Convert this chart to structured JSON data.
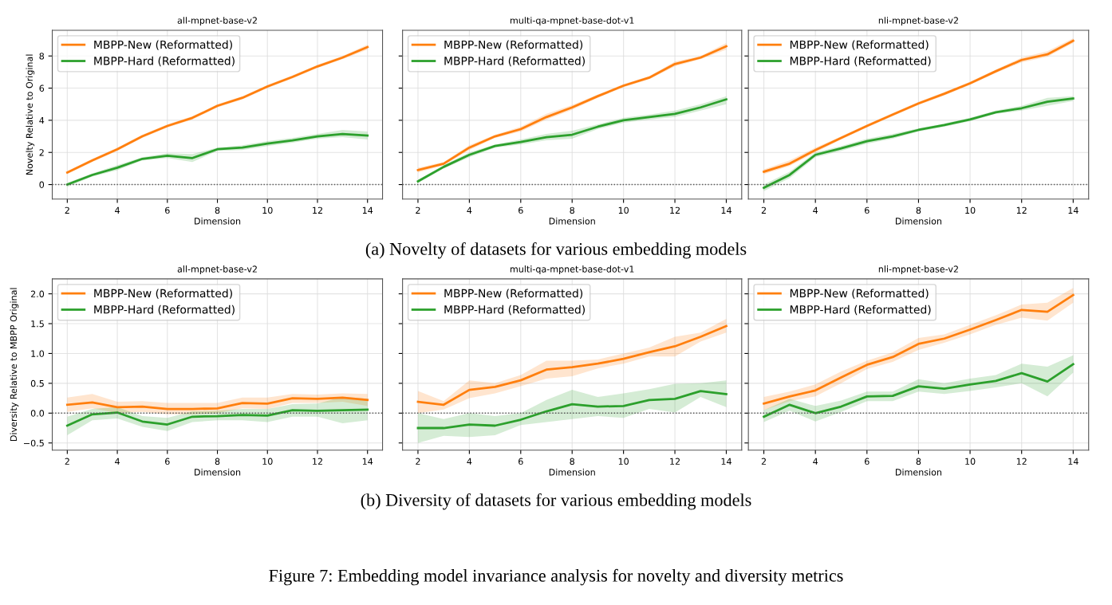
{
  "chart_data": [
    {
      "type": "line",
      "title": "all-mpnet-base-v2",
      "xlabel": "Dimension",
      "ylabel": "Novelty Relative to Original",
      "x": [
        2,
        3,
        4,
        5,
        6,
        7,
        8,
        9,
        10,
        11,
        12,
        13,
        14
      ],
      "xlim": [
        1.4,
        14.6
      ],
      "xticks": [
        2,
        4,
        6,
        8,
        10,
        12,
        14
      ],
      "ylim": [
        -0.9,
        9.6
      ],
      "yticks": [
        0,
        2,
        4,
        6,
        8
      ],
      "grid": true,
      "legend": "top left",
      "ref_lines": [
        {
          "axis": "y",
          "value": 0,
          "color": "#555555",
          "line_style": "dotted"
        }
      ],
      "annotations": [
        "(a) Novelty of datasets for various embedding models"
      ],
      "series": [
        {
          "name": "MBPP-New (Reformatted)",
          "color": "#ff7f0e",
          "values": [
            0.75,
            1.5,
            2.2,
            3.0,
            3.65,
            4.15,
            4.9,
            5.4,
            6.1,
            6.7,
            7.35,
            7.9,
            8.55
          ],
          "lower": [
            0.65,
            1.4,
            2.1,
            2.9,
            3.55,
            4.05,
            4.8,
            5.3,
            6.0,
            6.6,
            7.25,
            7.8,
            8.4
          ],
          "upper": [
            0.85,
            1.6,
            2.3,
            3.1,
            3.75,
            4.25,
            5.0,
            5.5,
            6.2,
            6.8,
            7.45,
            8.0,
            8.7
          ]
        },
        {
          "name": "MBPP-Hard (Reformatted)",
          "color": "#2ca02c",
          "values": [
            0.0,
            0.6,
            1.05,
            1.6,
            1.8,
            1.65,
            2.2,
            2.3,
            2.55,
            2.75,
            3.0,
            3.15,
            3.05
          ],
          "lower": [
            -0.15,
            0.5,
            0.9,
            1.5,
            1.65,
            1.4,
            2.1,
            2.15,
            2.4,
            2.6,
            2.85,
            2.95,
            2.8
          ],
          "upper": [
            0.1,
            0.7,
            1.2,
            1.7,
            1.95,
            1.9,
            2.3,
            2.45,
            2.7,
            2.9,
            3.15,
            3.4,
            3.3
          ]
        }
      ]
    },
    {
      "type": "line",
      "title": "multi-qa-mpnet-base-dot-v1",
      "xlabel": "Dimension",
      "x": [
        2,
        3,
        4,
        5,
        6,
        7,
        8,
        9,
        10,
        11,
        12,
        13,
        14
      ],
      "xlim": [
        1.4,
        14.6
      ],
      "xticks": [
        2,
        4,
        6,
        8,
        10,
        12,
        14
      ],
      "ylim": [
        -0.9,
        9.6
      ],
      "yticks": [
        {
          "value": 0,
          "label": null
        },
        {
          "value": 2,
          "label": null
        },
        {
          "value": 4,
          "label": null
        },
        {
          "value": 6,
          "label": null
        },
        {
          "value": 8,
          "label": null
        }
      ],
      "tick_labels": "x",
      "grid": true,
      "legend": "top left",
      "ref_lines": [
        {
          "axis": "y",
          "value": 0,
          "color": "#555555",
          "line_style": "dotted"
        }
      ],
      "series": [
        {
          "name": "MBPP-New (Reformatted)",
          "color": "#ff7f0e",
          "values": [
            0.9,
            1.3,
            2.3,
            3.0,
            3.45,
            4.2,
            4.8,
            5.5,
            6.15,
            6.65,
            7.5,
            7.9,
            8.6
          ],
          "lower": [
            0.75,
            1.2,
            2.15,
            2.9,
            3.3,
            4.05,
            4.65,
            5.4,
            6.05,
            6.55,
            7.35,
            7.8,
            8.4
          ],
          "upper": [
            1.05,
            1.4,
            2.45,
            3.1,
            3.6,
            4.4,
            4.95,
            5.6,
            6.25,
            6.75,
            7.65,
            8.0,
            8.8
          ]
        },
        {
          "name": "MBPP-Hard (Reformatted)",
          "color": "#2ca02c",
          "values": [
            0.2,
            1.1,
            1.85,
            2.4,
            2.65,
            2.95,
            3.1,
            3.6,
            4.0,
            4.2,
            4.4,
            4.8,
            5.3
          ],
          "lower": [
            0.1,
            1.0,
            1.7,
            2.3,
            2.5,
            2.75,
            2.85,
            3.45,
            3.85,
            4.05,
            4.2,
            4.6,
            5.0
          ],
          "upper": [
            0.3,
            1.2,
            2.0,
            2.5,
            2.8,
            3.15,
            3.35,
            3.75,
            4.15,
            4.35,
            4.6,
            5.0,
            5.5
          ]
        }
      ]
    },
    {
      "type": "line",
      "title": "nli-mpnet-base-v2",
      "xlabel": "Dimension",
      "x": [
        2,
        3,
        4,
        5,
        6,
        7,
        8,
        9,
        10,
        11,
        12,
        13,
        14
      ],
      "xlim": [
        1.4,
        14.6
      ],
      "xticks": [
        2,
        4,
        6,
        8,
        10,
        12,
        14
      ],
      "ylim": [
        -0.9,
        9.6
      ],
      "yticks": [
        {
          "value": 0,
          "label": null
        },
        {
          "value": 2,
          "label": null
        },
        {
          "value": 4,
          "label": null
        },
        {
          "value": 6,
          "label": null
        },
        {
          "value": 8,
          "label": null
        }
      ],
      "tick_labels": "x",
      "grid": true,
      "legend": "top left",
      "ref_lines": [
        {
          "axis": "y",
          "value": 0,
          "color": "#555555",
          "line_style": "dotted"
        }
      ],
      "series": [
        {
          "name": "MBPP-New (Reformatted)",
          "color": "#ff7f0e",
          "values": [
            0.8,
            1.3,
            2.15,
            2.9,
            3.65,
            4.35,
            5.05,
            5.65,
            6.3,
            7.05,
            7.75,
            8.1,
            8.95
          ],
          "lower": [
            0.65,
            1.15,
            2.0,
            2.8,
            3.55,
            4.25,
            4.95,
            5.55,
            6.2,
            6.95,
            7.6,
            7.95,
            8.8
          ],
          "upper": [
            0.95,
            1.5,
            2.3,
            3.0,
            3.75,
            4.45,
            5.15,
            5.75,
            6.4,
            7.15,
            7.9,
            8.3,
            9.1
          ]
        },
        {
          "name": "MBPP-Hard (Reformatted)",
          "color": "#2ca02c",
          "values": [
            -0.2,
            0.6,
            1.85,
            2.25,
            2.7,
            3.0,
            3.4,
            3.7,
            4.05,
            4.5,
            4.75,
            5.15,
            5.35
          ],
          "lower": [
            -0.4,
            0.4,
            1.7,
            2.1,
            2.55,
            2.85,
            3.3,
            3.6,
            3.95,
            4.4,
            4.6,
            4.9,
            5.2
          ],
          "upper": [
            0.0,
            0.8,
            2.0,
            2.4,
            2.85,
            3.15,
            3.5,
            3.8,
            4.15,
            4.6,
            4.9,
            5.4,
            5.5
          ]
        }
      ]
    },
    {
      "type": "line",
      "title": "all-mpnet-base-v2",
      "xlabel": "Dimension",
      "ylabel": "Diversity Relative to MBPP Original",
      "x": [
        2,
        3,
        4,
        5,
        6,
        7,
        8,
        9,
        10,
        11,
        12,
        13,
        14
      ],
      "xlim": [
        1.4,
        14.6
      ],
      "xticks": [
        2,
        4,
        6,
        8,
        10,
        12,
        14
      ],
      "ylim": [
        -0.62,
        2.25
      ],
      "yticks": [
        {
          "value": -0.5,
          "label": "−0.5"
        },
        {
          "value": 0,
          "label": "0.0"
        },
        {
          "value": 0.5,
          "label": "0.5"
        },
        {
          "value": 1,
          "label": "1.0"
        },
        {
          "value": 1.5,
          "label": "1.5"
        },
        {
          "value": 2,
          "label": "2.0"
        }
      ],
      "grid": true,
      "legend": "top left",
      "ref_lines": [
        {
          "axis": "y",
          "value": 0,
          "color": "#555555",
          "line_style": "dotted"
        }
      ],
      "annotations": [
        "(b) Diversity of datasets for various embedding models",
        "Figure 7: Embedding model invariance analysis for novelty and diversity metrics"
      ],
      "series": [
        {
          "name": "MBPP-New (Reformatted)",
          "color": "#ff7f0e",
          "values": [
            0.14,
            0.18,
            0.1,
            0.11,
            0.07,
            0.07,
            0.08,
            0.17,
            0.16,
            0.25,
            0.24,
            0.26,
            0.22
          ],
          "lower": [
            0.02,
            0.08,
            0.0,
            0.02,
            -0.02,
            -0.02,
            0.0,
            0.08,
            0.07,
            0.17,
            0.17,
            0.19,
            0.12
          ],
          "upper": [
            0.26,
            0.32,
            0.19,
            0.2,
            0.17,
            0.17,
            0.17,
            0.26,
            0.26,
            0.32,
            0.31,
            0.33,
            0.32
          ]
        },
        {
          "name": "MBPP-Hard (Reformatted)",
          "color": "#2ca02c",
          "values": [
            -0.21,
            -0.02,
            0.01,
            -0.14,
            -0.19,
            -0.06,
            -0.05,
            -0.03,
            -0.04,
            0.05,
            0.04,
            0.05,
            0.06
          ],
          "lower": [
            -0.37,
            -0.12,
            -0.09,
            -0.23,
            -0.3,
            -0.15,
            -0.12,
            -0.12,
            -0.15,
            -0.06,
            -0.06,
            -0.17,
            -0.12
          ],
          "upper": [
            -0.06,
            0.07,
            0.1,
            -0.05,
            -0.08,
            0.03,
            0.04,
            0.07,
            0.07,
            0.15,
            0.16,
            0.27,
            0.24
          ]
        }
      ]
    },
    {
      "type": "line",
      "title": "multi-qa-mpnet-base-dot-v1",
      "xlabel": "Dimension",
      "x": [
        2,
        3,
        4,
        5,
        6,
        7,
        8,
        9,
        10,
        11,
        12,
        13,
        14
      ],
      "xlim": [
        1.4,
        14.6
      ],
      "xticks": [
        2,
        4,
        6,
        8,
        10,
        12,
        14
      ],
      "ylim": [
        -0.62,
        2.25
      ],
      "yticks": [
        {
          "value": -0.5,
          "label": null
        },
        {
          "value": 0,
          "label": null
        },
        {
          "value": 0.5,
          "label": null
        },
        {
          "value": 1,
          "label": null
        },
        {
          "value": 1.5,
          "label": null
        },
        {
          "value": 2,
          "label": null
        }
      ],
      "tick_labels": "x",
      "grid": true,
      "legend": "top left",
      "ref_lines": [
        {
          "axis": "y",
          "value": 0,
          "color": "#555555",
          "line_style": "dotted"
        }
      ],
      "series": [
        {
          "name": "MBPP-New (Reformatted)",
          "color": "#ff7f0e",
          "values": [
            0.19,
            0.14,
            0.39,
            0.44,
            0.55,
            0.73,
            0.77,
            0.83,
            0.91,
            1.02,
            1.12,
            1.28,
            1.46
          ],
          "lower": [
            0.0,
            0.06,
            0.25,
            0.33,
            0.45,
            0.58,
            0.62,
            0.75,
            0.83,
            0.95,
            0.95,
            1.2,
            1.35
          ],
          "upper": [
            0.37,
            0.2,
            0.55,
            0.5,
            0.64,
            0.88,
            0.88,
            0.9,
            1.0,
            1.1,
            1.28,
            1.35,
            1.58
          ]
        },
        {
          "name": "MBPP-Hard (Reformatted)",
          "color": "#2ca02c",
          "values": [
            -0.25,
            -0.25,
            -0.19,
            -0.21,
            -0.11,
            0.03,
            0.15,
            0.11,
            0.12,
            0.22,
            0.24,
            0.37,
            0.32
          ],
          "lower": [
            -0.5,
            -0.38,
            -0.4,
            -0.37,
            -0.2,
            -0.15,
            -0.1,
            -0.05,
            -0.08,
            0.07,
            0.01,
            0.27,
            0.1
          ],
          "upper": [
            0.0,
            -0.1,
            0.0,
            -0.05,
            0.0,
            0.22,
            0.39,
            0.27,
            0.33,
            0.4,
            0.49,
            0.5,
            0.55
          ]
        }
      ]
    },
    {
      "type": "line",
      "title": "nli-mpnet-base-v2",
      "xlabel": "Dimension",
      "x": [
        2,
        3,
        4,
        5,
        6,
        7,
        8,
        9,
        10,
        11,
        12,
        13,
        14
      ],
      "xlim": [
        1.4,
        14.6
      ],
      "xticks": [
        2,
        4,
        6,
        8,
        10,
        12,
        14
      ],
      "ylim": [
        -0.62,
        2.25
      ],
      "yticks": [
        {
          "value": -0.5,
          "label": null
        },
        {
          "value": 0,
          "label": null
        },
        {
          "value": 0.5,
          "label": null
        },
        {
          "value": 1,
          "label": null
        },
        {
          "value": 1.5,
          "label": null
        },
        {
          "value": 2,
          "label": null
        }
      ],
      "tick_labels": "x",
      "grid": true,
      "legend": "top left",
      "ref_lines": [
        {
          "axis": "y",
          "value": 0,
          "color": "#555555",
          "line_style": "dotted"
        }
      ],
      "series": [
        {
          "name": "MBPP-New (Reformatted)",
          "color": "#ff7f0e",
          "values": [
            0.16,
            0.28,
            0.38,
            0.6,
            0.81,
            0.94,
            1.16,
            1.25,
            1.4,
            1.56,
            1.73,
            1.7,
            1.98
          ],
          "lower": [
            0.05,
            0.2,
            0.28,
            0.5,
            0.74,
            0.86,
            1.06,
            1.18,
            1.32,
            1.48,
            1.6,
            1.55,
            1.85
          ],
          "upper": [
            0.27,
            0.36,
            0.48,
            0.7,
            0.88,
            1.02,
            1.26,
            1.32,
            1.48,
            1.64,
            1.82,
            1.85,
            2.1
          ]
        },
        {
          "name": "MBPP-Hard (Reformatted)",
          "color": "#2ca02c",
          "values": [
            -0.06,
            0.14,
            0.0,
            0.11,
            0.28,
            0.29,
            0.45,
            0.41,
            0.48,
            0.54,
            0.67,
            0.53,
            0.82
          ],
          "lower": [
            -0.15,
            0.04,
            -0.14,
            0.02,
            0.2,
            0.2,
            0.36,
            0.32,
            0.37,
            0.43,
            0.5,
            0.28,
            0.68
          ],
          "upper": [
            0.05,
            0.24,
            0.12,
            0.21,
            0.36,
            0.36,
            0.57,
            0.5,
            0.58,
            0.64,
            0.83,
            0.78,
            0.97
          ]
        }
      ]
    }
  ]
}
